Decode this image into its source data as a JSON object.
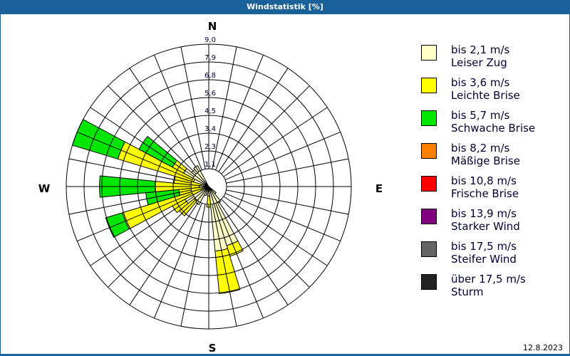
{
  "window": {
    "title": "Windstatistik [%]"
  },
  "footer": {
    "date": "12.8.2023"
  },
  "compass": {
    "north": "N",
    "east": "E",
    "south": "S",
    "west": "W"
  },
  "legend": [
    {
      "range": "bis 2,1 m/s",
      "name": "Leiser Zug",
      "color": "#ffffc8"
    },
    {
      "range": "bis 3,6 m/s",
      "name": "Leichte Brise",
      "color": "#ffff00"
    },
    {
      "range": "bis 5,7 m/s",
      "name": "Schwache Brise",
      "color": "#00e600"
    },
    {
      "range": "bis 8,2 m/s",
      "name": "Mäßige Brise",
      "color": "#ff8000"
    },
    {
      "range": "bis 10,8 m/s",
      "name": "Frische Brise",
      "color": "#ff0000"
    },
    {
      "range": "bis 13,9 m/s",
      "name": "Starker Wind",
      "color": "#800080"
    },
    {
      "range": "bis 17,5 m/s",
      "name": "Steifer Wind",
      "color": "#646464"
    },
    {
      "range": "über 17,5 m/s",
      "name": "Sturm",
      "color": "#222222"
    }
  ],
  "chart_data": {
    "type": "polar-bar (wind rose)",
    "title": "Windstatistik [%]",
    "unit": "%",
    "sectors": 32,
    "sector_width_deg": 11.25,
    "rmax": 9.0,
    "ring_labels": [
      "1,1",
      "2,3",
      "3,4",
      "4,5",
      "5,6",
      "6,8",
      "7,9",
      "9,0"
    ],
    "ring_values": [
      1.125,
      2.25,
      3.375,
      4.5,
      5.625,
      6.75,
      7.875,
      9.0
    ],
    "speed_classes": [
      "bis 2,1 m/s",
      "bis 3,6 m/s",
      "bis 5,7 m/s",
      "bis 8,2 m/s",
      "bis 10,8 m/s",
      "bis 13,9 m/s",
      "bis 17,5 m/s",
      "über 17,5 m/s"
    ],
    "note": "cumulative radii per direction (light-yellow, yellow, green); other classes 0",
    "bars": [
      {
        "dir_deg": 135.0,
        "cumulative": [
          0.6,
          0.6,
          0.6
        ]
      },
      {
        "dir_deg": 146.25,
        "cumulative": [
          1.2,
          1.2,
          1.2
        ]
      },
      {
        "dir_deg": 157.5,
        "cumulative": [
          3.9,
          4.6,
          4.6
        ]
      },
      {
        "dir_deg": 168.75,
        "cumulative": [
          4.1,
          6.8,
          6.8
        ]
      },
      {
        "dir_deg": 180.0,
        "cumulative": [
          0.6,
          1.3,
          1.3
        ]
      },
      {
        "dir_deg": 191.25,
        "cumulative": [
          0.5,
          0.5,
          0.5
        ]
      },
      {
        "dir_deg": 202.5,
        "cumulative": [
          0.6,
          0.6,
          0.6
        ]
      },
      {
        "dir_deg": 213.75,
        "cumulative": [
          1.3,
          1.3,
          1.3
        ]
      },
      {
        "dir_deg": 225.0,
        "cumulative": [
          1.2,
          2.4,
          2.4
        ]
      },
      {
        "dir_deg": 236.25,
        "cumulative": [
          1.7,
          2.6,
          2.6
        ]
      },
      {
        "dir_deg": 247.5,
        "cumulative": [
          0.5,
          5.7,
          6.8
        ]
      },
      {
        "dir_deg": 258.75,
        "cumulative": [
          0.4,
          1.9,
          4.0
        ]
      },
      {
        "dir_deg": 270.0,
        "cumulative": [
          0.6,
          3.4,
          6.9
        ]
      },
      {
        "dir_deg": 281.25,
        "cumulative": [
          0.5,
          2.2,
          2.2
        ]
      },
      {
        "dir_deg": 292.5,
        "cumulative": [
          1.0,
          6.0,
          9.0
        ]
      },
      {
        "dir_deg": 303.75,
        "cumulative": [
          1.8,
          2.6,
          5.0
        ]
      },
      {
        "dir_deg": 315.0,
        "cumulative": [
          1.4,
          1.4,
          1.4
        ]
      },
      {
        "dir_deg": 326.25,
        "cumulative": [
          1.5,
          1.5,
          1.5
        ]
      }
    ],
    "legend_position": "right"
  }
}
